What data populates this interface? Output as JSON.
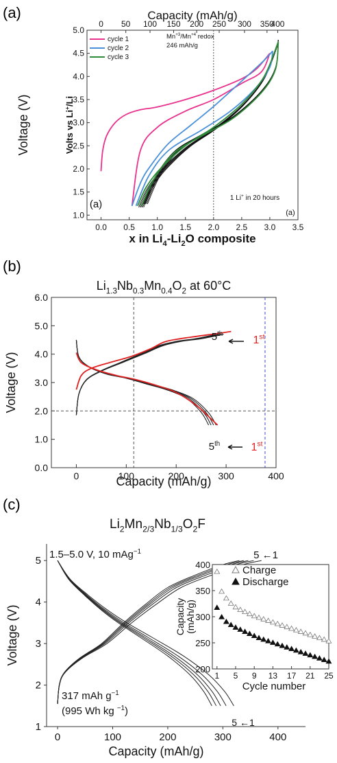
{
  "chart_data": [
    {
      "panel": "(a)",
      "type": "line",
      "title": "",
      "xlabel": "x in Li4-Li2O composite",
      "xlabel_parts": [
        [
          "x in Li",
          ""
        ],
        [
          "4",
          "sub"
        ],
        [
          "-Li",
          ""
        ],
        [
          "2",
          "sub"
        ],
        [
          "O composite",
          ""
        ]
      ],
      "ylabel_outer": "Voltage (V)",
      "ylabel_inner": "Volts vs Li+/Li",
      "ylabel_inner_parts": [
        [
          "Volts vs Li",
          ""
        ],
        [
          "+",
          "sup"
        ],
        [
          "/Li",
          ""
        ]
      ],
      "top_axis_label": "Capacity (mAh/g)",
      "top_ticks": [
        0,
        50,
        100,
        150,
        200,
        250,
        300,
        350,
        400
      ],
      "top_ticks_x": [
        0,
        0.44,
        0.87,
        1.29,
        1.7,
        2.1,
        2.55,
        2.95,
        3.14
      ],
      "xlim": [
        -0.25,
        3.5
      ],
      "ylim": [
        0.9,
        5.0
      ],
      "xticks": [
        0.0,
        0.5,
        1.0,
        1.5,
        2.0,
        2.5,
        3.0,
        3.5
      ],
      "yticks": [
        1.0,
        1.5,
        2.0,
        2.5,
        3.0,
        3.5,
        4.0,
        4.5,
        5.0
      ],
      "vline_x": 2.0,
      "legend": [
        {
          "name": "cycle 1",
          "color": "#e8308c"
        },
        {
          "name": "cycle 2",
          "color": "#4a90d9"
        },
        {
          "name": "cycle 3",
          "color": "#2e8b3a"
        }
      ],
      "annotations": {
        "redox_line1": "Mn+3/Mn+4 redox",
        "redox_line1_parts": [
          [
            "Mn",
            ""
          ],
          [
            "+3",
            "sup"
          ],
          [
            "/Mn",
            ""
          ],
          [
            "+4",
            "sup"
          ],
          [
            " redox",
            ""
          ]
        ],
        "redox_line2": "246 mAh/g",
        "rate": "1 Li+ in 20 hours",
        "rate_parts": [
          [
            "1 Li",
            ""
          ],
          [
            "+",
            "sup"
          ],
          [
            " in 20 hours",
            ""
          ]
        ],
        "inner_tag_left": "(a)",
        "inner_tag_right": "(a)"
      },
      "cycle1_charge": [
        [
          0.0,
          1.95
        ],
        [
          0.03,
          2.4
        ],
        [
          0.1,
          2.72
        ],
        [
          0.25,
          3.0
        ],
        [
          0.45,
          3.18
        ],
        [
          0.7,
          3.28
        ],
        [
          1.0,
          3.34
        ],
        [
          1.5,
          3.5
        ],
        [
          2.0,
          3.7
        ],
        [
          2.5,
          3.95
        ],
        [
          2.75,
          4.15
        ],
        [
          2.9,
          4.35
        ],
        [
          3.0,
          4.5
        ]
      ],
      "cycle1_discharge": [
        [
          3.0,
          4.5
        ],
        [
          2.85,
          4.1
        ],
        [
          2.5,
          3.85
        ],
        [
          2.0,
          3.5
        ],
        [
          1.5,
          3.25
        ],
        [
          1.0,
          2.9
        ],
        [
          0.7,
          2.4
        ],
        [
          0.55,
          1.2
        ]
      ],
      "cycle2_charge": [
        [
          0.55,
          1.2
        ],
        [
          0.72,
          1.75
        ],
        [
          0.9,
          2.1
        ],
        [
          1.2,
          2.55
        ],
        [
          1.6,
          2.95
        ],
        [
          2.0,
          3.35
        ],
        [
          2.5,
          3.9
        ],
        [
          2.9,
          4.35
        ],
        [
          3.05,
          4.55
        ]
      ],
      "cycle2_discharge": [
        [
          3.05,
          4.55
        ],
        [
          3.0,
          4.2
        ],
        [
          2.75,
          3.75
        ],
        [
          2.3,
          3.25
        ],
        [
          1.8,
          2.85
        ],
        [
          1.2,
          2.4
        ],
        [
          0.85,
          1.85
        ],
        [
          0.62,
          1.2
        ]
      ],
      "cycle3_charge": [
        [
          0.65,
          1.2
        ],
        [
          0.8,
          1.6
        ],
        [
          1.05,
          2.0
        ],
        [
          1.5,
          2.5
        ],
        [
          2.0,
          2.9
        ],
        [
          2.5,
          3.4
        ],
        [
          2.9,
          4.0
        ],
        [
          3.15,
          4.75
        ]
      ],
      "cycle3_discharge": [
        [
          3.15,
          4.75
        ],
        [
          3.1,
          4.15
        ],
        [
          2.85,
          3.65
        ],
        [
          2.35,
          3.1
        ],
        [
          1.8,
          2.72
        ],
        [
          1.3,
          2.35
        ],
        [
          0.95,
          1.8
        ],
        [
          0.72,
          1.2
        ]
      ],
      "later_cycles_offsets": [
        0.06,
        0.12,
        0.18,
        0.24,
        0.3,
        0.36
      ]
    },
    {
      "panel": "(b)",
      "type": "line",
      "title": "Li1.3Nb0.3Mn0.4O2 at 60°C",
      "title_parts": [
        [
          "Li",
          ""
        ],
        [
          "1.3",
          "sub"
        ],
        [
          "Nb",
          ""
        ],
        [
          "0.3",
          "sub"
        ],
        [
          "Mn",
          ""
        ],
        [
          "0.4",
          "sub"
        ],
        [
          "O",
          ""
        ],
        [
          "2",
          "sub"
        ],
        [
          " at 60°C",
          ""
        ]
      ],
      "xlabel": "Capacity (mAh/g)",
      "ylabel": "Voltage (V)",
      "xlim": [
        -50,
        400
      ],
      "ylim": [
        0.0,
        6.0
      ],
      "xticks": [
        0,
        100,
        200,
        300,
        400
      ],
      "yticks": [
        0.0,
        1.0,
        2.0,
        3.0,
        4.0,
        5.0,
        6.0
      ],
      "ref_lines": {
        "vline_dark": 115,
        "vline_blue": 378,
        "hline": 2.0
      },
      "labels": {
        "fifth": "5th",
        "first": "1st",
        "fifth_parts": [
          [
            "5",
            ""
          ],
          [
            "th",
            "sup"
          ]
        ],
        "first_parts": [
          [
            "1",
            ""
          ],
          [
            "st",
            "sup"
          ]
        ]
      },
      "colors": {
        "first": "#e02020",
        "others": "#222222",
        "blue_line": "#3a4fc8"
      },
      "first_charge": [
        [
          0,
          2.75
        ],
        [
          10,
          3.25
        ],
        [
          30,
          3.5
        ],
        [
          70,
          3.72
        ],
        [
          110,
          3.92
        ],
        [
          150,
          4.2
        ],
        [
          180,
          4.45
        ],
        [
          230,
          4.6
        ],
        [
          280,
          4.72
        ],
        [
          310,
          4.8
        ]
      ],
      "first_discharge": [
        [
          0,
          4.05
        ],
        [
          10,
          3.7
        ],
        [
          40,
          3.45
        ],
        [
          80,
          3.25
        ],
        [
          120,
          3.1
        ],
        [
          160,
          2.9
        ],
        [
          200,
          2.65
        ],
        [
          240,
          2.2
        ],
        [
          265,
          1.8
        ],
        [
          283,
          1.5
        ]
      ],
      "other_charge_base": [
        [
          0,
          1.85
        ],
        [
          5,
          2.6
        ],
        [
          20,
          3.1
        ],
        [
          50,
          3.42
        ],
        [
          90,
          3.72
        ],
        [
          130,
          4.02
        ],
        [
          165,
          4.3
        ],
        [
          200,
          4.45
        ],
        [
          240,
          4.55
        ],
        [
          280,
          4.7
        ]
      ],
      "other_discharge_base": [
        [
          0,
          4.5
        ],
        [
          5,
          3.9
        ],
        [
          25,
          3.55
        ],
        [
          60,
          3.3
        ],
        [
          100,
          3.15
        ],
        [
          140,
          2.95
        ],
        [
          180,
          2.75
        ],
        [
          220,
          2.45
        ],
        [
          250,
          1.95
        ],
        [
          265,
          1.5
        ]
      ],
      "other_offsets": [
        0,
        5,
        10,
        15
      ]
    },
    {
      "panel": "(c)",
      "type": "line",
      "title": "Li2Mn2/3Nb1/3O2F",
      "title_parts": [
        [
          "Li",
          ""
        ],
        [
          "2",
          "sub"
        ],
        [
          "Mn",
          ""
        ],
        [
          "2/3",
          "sub"
        ],
        [
          "Nb",
          ""
        ],
        [
          "1/3",
          "sub"
        ],
        [
          "O",
          ""
        ],
        [
          "2",
          "sub"
        ],
        [
          "F",
          ""
        ]
      ],
      "xlabel": "Capacity (mAh/g)",
      "ylabel": "Voltage (V)",
      "xlim": [
        -20,
        450
      ],
      "ylim": [
        1.0,
        5.4
      ],
      "xticks": [
        0,
        100,
        200,
        300,
        400
      ],
      "yticks": [
        1,
        2,
        3,
        4,
        5
      ],
      "conditions": "1.5–5.0 V, 10 mAg−1",
      "conditions_parts": [
        [
          "1.5–5.0 V, 10 mAg",
          ""
        ],
        [
          "−1",
          "sup"
        ]
      ],
      "capacity_note_line1": "317 mAh  g−1",
      "capacity_note_line1_parts": [
        [
          "317 mAh  g",
          ""
        ],
        [
          "−1",
          "sup"
        ]
      ],
      "capacity_note_line2": "(995 Wh kg −1)",
      "capacity_note_line2_parts": [
        [
          "(995 Wh kg ",
          ""
        ],
        [
          "−1",
          "sup"
        ],
        [
          ")",
          ""
        ]
      ],
      "cycle_label_top": "5 ←1",
      "cycle_label_bottom": "5 ←1",
      "charge_base": [
        [
          0,
          1.55
        ],
        [
          3,
          2.0
        ],
        [
          12,
          2.3
        ],
        [
          40,
          2.65
        ],
        [
          80,
          3.0
        ],
        [
          120,
          3.5
        ],
        [
          160,
          3.95
        ],
        [
          200,
          4.35
        ],
        [
          250,
          4.65
        ],
        [
          300,
          4.9
        ],
        [
          330,
          5.0
        ]
      ],
      "discharge_base": [
        [
          0,
          5.0
        ],
        [
          20,
          4.55
        ],
        [
          50,
          4.15
        ],
        [
          80,
          3.8
        ],
        [
          110,
          3.5
        ],
        [
          150,
          3.15
        ],
        [
          200,
          2.7
        ],
        [
          240,
          2.25
        ],
        [
          265,
          1.85
        ],
        [
          280,
          1.5
        ]
      ],
      "cycle_offsets": [
        0,
        8,
        16,
        26,
        40
      ],
      "inset": {
        "type": "scatter",
        "xlabel": "Cycle number",
        "ylabel": "Capacity (mAh/g)",
        "ylabel_line1": "Capacity",
        "ylabel_line2": "(mAh/g)",
        "xlim": [
          0,
          25
        ],
        "ylim": [
          200,
          400
        ],
        "xticks": [
          1,
          5,
          9,
          13,
          17,
          21,
          25
        ],
        "yticks": [
          200,
          250,
          300,
          350,
          400
        ],
        "series": [
          {
            "name": "Charge",
            "marker": "open-triangle",
            "x": [
              1,
              2,
              3,
              4,
              5,
              6,
              7,
              8,
              9,
              10,
              11,
              12,
              13,
              14,
              15,
              16,
              17,
              18,
              19,
              20,
              21,
              22,
              23,
              24,
              25
            ],
            "values": [
              386,
              348,
              335,
              325,
              318,
              313,
              309,
              305,
              301,
              298,
              295,
              292,
              289,
              286,
              283,
              280,
              277,
              274,
              271,
              268,
              265,
              262,
              259,
              256,
              253
            ]
          },
          {
            "name": "Discharge",
            "marker": "filled-triangle",
            "x": [
              1,
              2,
              3,
              4,
              5,
              6,
              7,
              8,
              9,
              10,
              11,
              12,
              13,
              14,
              15,
              16,
              17,
              18,
              19,
              20,
              21,
              22,
              23,
              24,
              25
            ],
            "values": [
              317,
              299,
              290,
              284,
              279,
              275,
              271,
              267,
              263,
              259,
              256,
              253,
              250,
              247,
              244,
              241,
              238,
              235,
              232,
              229,
              226,
              223,
              220,
              217,
              214
            ]
          }
        ]
      }
    }
  ]
}
